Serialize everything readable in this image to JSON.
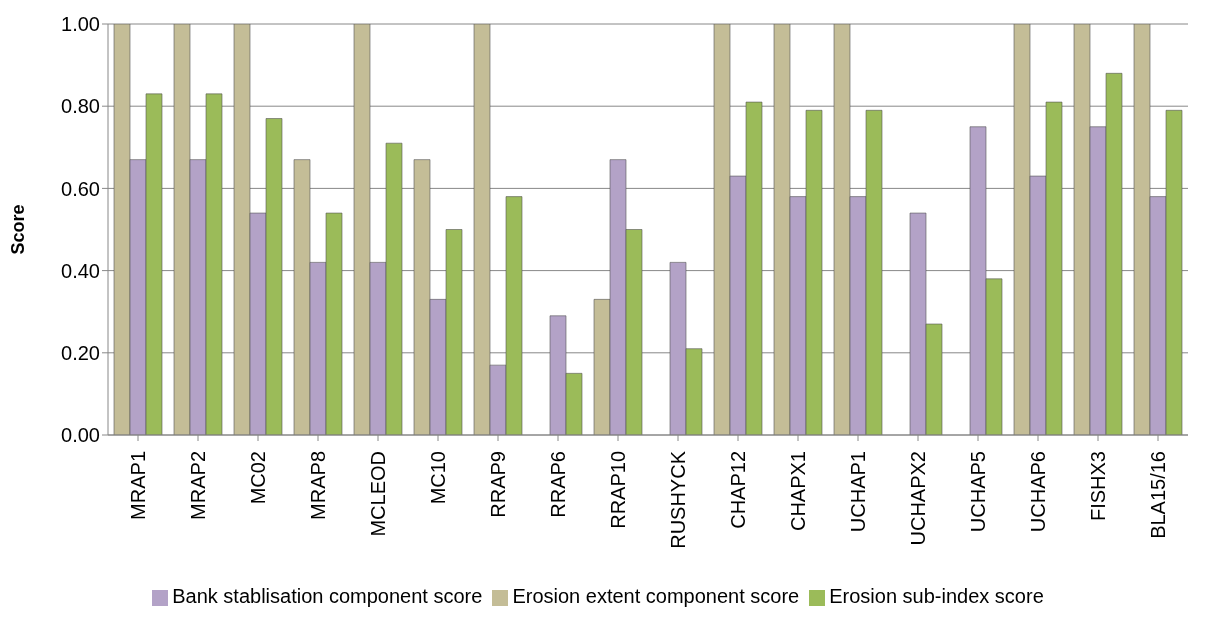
{
  "chart_data": {
    "type": "bar",
    "ylabel": "Score",
    "categories": [
      "MRAP1",
      "MRAP2",
      "MC02",
      "MRAP8",
      "MCLEOD",
      "MC10",
      "RRAP9",
      "RRAP6",
      "RRAP10",
      "RUSHYCK",
      "CHAP12",
      "CHAPX1",
      "UCHAP1",
      "UCHAPX2",
      "UCHAP5",
      "UCHAP6",
      "FISHX3",
      "BLA15/16"
    ],
    "series": [
      {
        "name": "Erosion extent component score",
        "color": "#c4bd97",
        "values": [
          1,
          1,
          1,
          0.67,
          1,
          0.67,
          1,
          0,
          0.33,
          0,
          1,
          1,
          1,
          0,
          0,
          1,
          1,
          1
        ]
      },
      {
        "name": "Bank stablisation component score",
        "color": "#b3a2c7",
        "values": [
          0.67,
          0.67,
          0.54,
          0.42,
          0.42,
          0.33,
          0.17,
          0.29,
          0.67,
          0.42,
          0.63,
          0.58,
          0.58,
          0.54,
          0.75,
          0.63,
          0.75,
          0.58
        ]
      },
      {
        "name": "Erosion sub-index score",
        "color": "#9bbb59",
        "values": [
          0.83,
          0.83,
          0.77,
          0.54,
          0.71,
          0.5,
          0.58,
          0.15,
          0.5,
          0.21,
          0.81,
          0.79,
          0.79,
          0.27,
          0.38,
          0.81,
          0.88,
          0.79
        ]
      }
    ],
    "ylim": [
      0,
      1
    ],
    "yticks": [
      {
        "value": 0,
        "label": "0.00"
      },
      {
        "value": 0.2,
        "label": "0.20"
      },
      {
        "value": 0.4,
        "label": "0.40"
      },
      {
        "value": 0.6,
        "label": "0.60"
      },
      {
        "value": 0.8,
        "label": "0.80"
      },
      {
        "value": 1,
        "label": "1.00"
      }
    ],
    "grid": "y",
    "legend": "bottom"
  }
}
